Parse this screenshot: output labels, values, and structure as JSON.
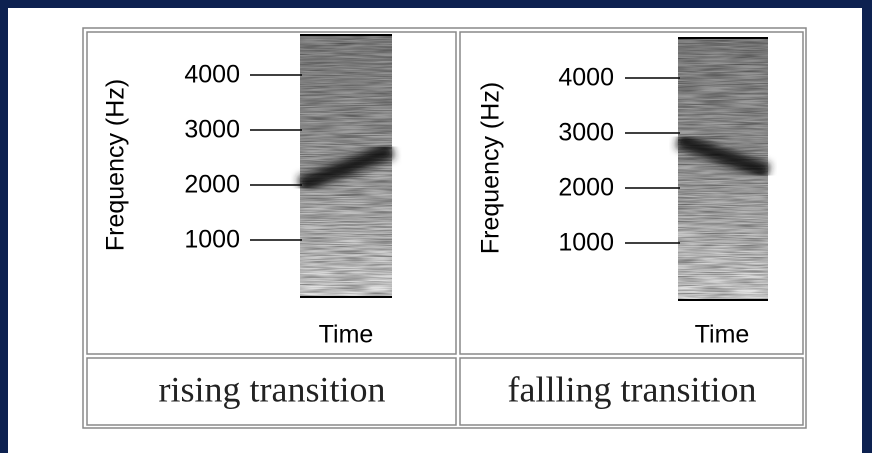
{
  "panels": [
    {
      "y_label": "Frequency (Hz)",
      "ticks": [
        "4000",
        "3000",
        "2000",
        "1000"
      ],
      "x_label": "Time",
      "caption": "rising transition"
    },
    {
      "y_label": "Frequency (Hz)",
      "ticks": [
        "4000",
        "3000",
        "2000",
        "1000"
      ],
      "x_label": "Time",
      "caption": "fallling transition"
    }
  ]
}
